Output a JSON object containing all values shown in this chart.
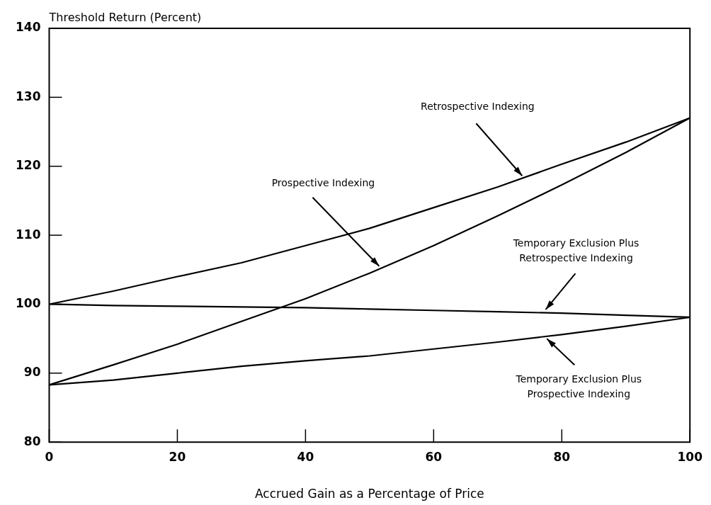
{
  "chart_data": {
    "type": "line",
    "ylabel": "Threshold Return (Percent)",
    "xlabel": "Accrued Gain as a Percentage of Price",
    "x": [
      0,
      10,
      20,
      30,
      40,
      50,
      60,
      70,
      80,
      90,
      100
    ],
    "series": [
      {
        "color": "#000000",
        "values": [
          100,
          101.9,
          104,
          106,
          108.5,
          111,
          114,
          117,
          120.3,
          123.5,
          127
        ]
      },
      {
        "color": "#000000",
        "values": [
          88.3,
          91.2,
          94.2,
          97.5,
          100.8,
          104.5,
          108.5,
          112.8,
          117.3,
          122,
          127
        ]
      },
      {
        "color": "#000000",
        "values": [
          100,
          99.8,
          99.7,
          99.6,
          99.5,
          99.3,
          99.1,
          98.9,
          98.7,
          98.4,
          98.1
        ]
      },
      {
        "color": "#000000",
        "values": [
          88.3,
          89,
          90,
          91,
          91.8,
          92.5,
          93.5,
          94.5,
          95.6,
          96.8,
          98.1
        ]
      }
    ],
    "annotations": [
      {
        "text": "Retrospective Indexing",
        "x": 73.6,
        "y": 118.2
      },
      {
        "text": "Prospective Indexing",
        "x": 51.5,
        "y": 105.1
      },
      {
        "text": "Temporary Exclusion Plus\nRetrospective Indexing",
        "x": 77.7,
        "y": 98.8
      },
      {
        "text": "Temporary Exclusion Plus\nProspective Indexing",
        "x": 77.9,
        "y": 95.4
      }
    ],
    "xlim": [
      0,
      100
    ],
    "xticks": [
      0,
      20,
      40,
      60,
      80,
      100
    ],
    "ylim": [
      80,
      140
    ],
    "yticks": [
      80,
      90,
      100,
      110,
      120,
      130,
      140
    ],
    "grid": false,
    "legend": false,
    "marker": "none",
    "line_style": "solid"
  }
}
